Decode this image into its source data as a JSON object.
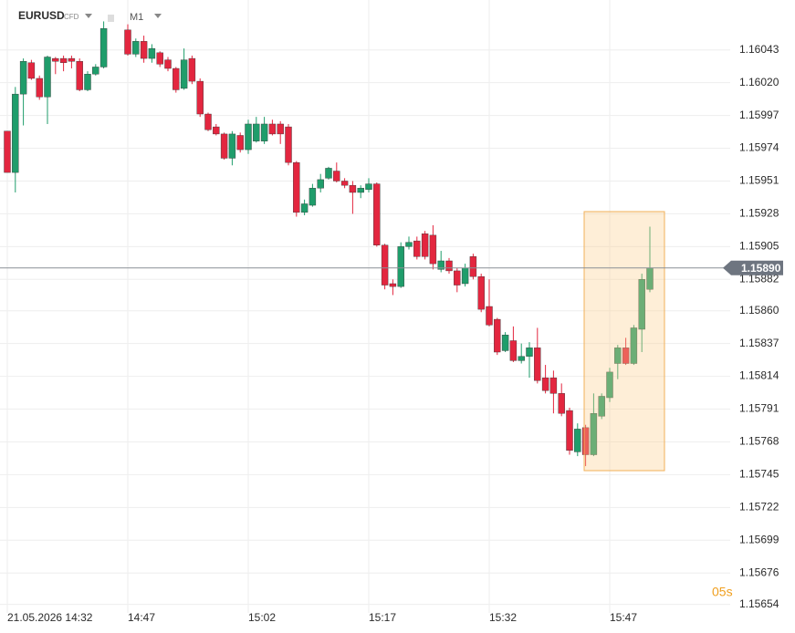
{
  "chart_data": {
    "type": "candlestick",
    "symbol": "EURUSD",
    "market": "CFD",
    "timeframe": "M1",
    "countdown": "05s",
    "up_color": "#1f9d6b",
    "down_color": "#e3263f",
    "grid": true,
    "categories": [
      "21.05.2026 14:32",
      null,
      null,
      null,
      null,
      null,
      null,
      null,
      null,
      null,
      null,
      null,
      null,
      null,
      null,
      "14:47",
      null,
      null,
      null,
      null,
      null,
      null,
      null,
      null,
      null,
      null,
      null,
      null,
      null,
      null,
      "15:02",
      null,
      null,
      null,
      null,
      null,
      null,
      null,
      null,
      null,
      null,
      null,
      null,
      null,
      null,
      "15:17",
      null,
      null,
      null,
      null,
      null,
      null,
      null,
      null,
      null,
      null,
      null,
      null,
      null,
      null,
      "15:32",
      null,
      null,
      null,
      null,
      null,
      null,
      null,
      null,
      null,
      null,
      null,
      null,
      null,
      null,
      "15:47",
      null,
      null,
      null,
      null,
      null
    ],
    "open": [
      1.15986,
      1.15957,
      1.16012,
      1.16034,
      1.16023,
      1.1601,
      1.16037,
      1.16037,
      1.16037,
      1.16035,
      1.16015,
      1.16026,
      1.16031,
      null,
      null,
      1.16057,
      1.1604,
      1.16049,
      1.16037,
      1.16041,
      1.16036,
      1.1603,
      1.16016,
      1.16037,
      1.16021,
      1.15998,
      1.15989,
      1.15984,
      1.15967,
      1.15983,
      1.15973,
      1.15979,
      1.15979,
      1.15991,
      1.15991,
      1.15989,
      1.15964,
      1.15929,
      1.15934,
      1.15946,
      1.15953,
      1.15958,
      1.15951,
      1.15948,
      1.15943,
      1.15945,
      1.15949,
      1.15906,
      1.15879,
      1.15877,
      1.15905,
      1.15909,
      1.15914,
      1.15913,
      1.15889,
      1.15895,
      1.15888,
      1.15879,
      1.15898,
      1.15884,
      1.15863,
      1.15854,
      1.15832,
      1.15839,
      1.15825,
      1.15828,
      1.15834,
      1.15813,
      1.15813,
      1.15802,
      1.1579,
      1.15761,
      1.15778,
      1.15759,
      1.15786,
      1.15799,
      1.15823,
      1.15834,
      1.15823,
      1.15847,
      1.15875
    ],
    "high": [
      1.15986,
      1.16017,
      1.16037,
      1.16036,
      1.16025,
      1.16039,
      1.16038,
      1.16039,
      1.16039,
      1.16037,
      1.16028,
      1.16033,
      1.16063,
      null,
      null,
      1.16061,
      1.16051,
      1.16053,
      1.16047,
      1.16042,
      1.16038,
      1.16031,
      1.16044,
      1.16039,
      1.16023,
      1.15999,
      1.15991,
      1.15985,
      1.15986,
      1.15985,
      1.15994,
      1.15996,
      1.15996,
      1.15994,
      1.15993,
      1.15991,
      1.15965,
      1.15938,
      1.15949,
      1.15956,
      1.15961,
      1.15964,
      1.15953,
      1.15951,
      1.15948,
      1.15953,
      1.1595,
      1.15907,
      1.15882,
      1.15908,
      1.15912,
      1.15912,
      1.15916,
      1.1592,
      1.15902,
      1.15897,
      1.1589,
      1.15893,
      1.159,
      1.15886,
      1.15882,
      1.15855,
      1.15845,
      1.15849,
      1.15837,
      1.15838,
      1.15848,
      1.15822,
      1.15818,
      1.15809,
      1.15792,
      1.15781,
      1.1578,
      1.15802,
      1.15802,
      1.1582,
      1.15836,
      1.15841,
      1.1585,
      1.15886,
      1.15919
    ],
    "low": [
      1.15957,
      1.15943,
      1.1599,
      1.16022,
      1.16008,
      1.15991,
      1.16026,
      1.16028,
      1.1603,
      1.16014,
      1.16014,
      1.16025,
      1.1603,
      null,
      null,
      1.16039,
      1.16038,
      1.16034,
      1.16034,
      1.16031,
      1.16028,
      1.16013,
      1.16015,
      1.16019,
      1.15996,
      1.15986,
      1.15983,
      1.15966,
      1.15962,
      1.15971,
      1.1597,
      1.15978,
      1.15977,
      1.15983,
      1.15977,
      1.15962,
      1.15926,
      1.15927,
      1.15933,
      1.15943,
      1.15952,
      1.1595,
      1.15946,
      1.15928,
      1.15939,
      1.15943,
      1.15905,
      1.15875,
      1.15871,
      1.15876,
      1.15903,
      1.15896,
      1.15896,
      1.15889,
      1.15887,
      1.15886,
      1.15873,
      1.15877,
      1.15882,
      1.15859,
      1.15849,
      1.15829,
      1.15831,
      1.15824,
      1.15823,
      1.15813,
      1.15809,
      1.15802,
      1.15788,
      1.15786,
      1.15759,
      1.15758,
      1.15751,
      1.15758,
      1.15784,
      1.15796,
      1.15812,
      1.15822,
      1.15822,
      1.15831,
      1.15873
    ],
    "close": [
      1.15957,
      1.16012,
      1.16035,
      1.16023,
      1.1601,
      1.16038,
      1.16035,
      1.16034,
      1.16035,
      1.16015,
      1.16026,
      1.16031,
      1.16058,
      null,
      null,
      1.1604,
      1.16049,
      1.16037,
      1.16044,
      1.16033,
      1.1603,
      1.16015,
      1.16036,
      1.16021,
      1.15998,
      1.15987,
      1.15984,
      1.15967,
      1.15984,
      1.15973,
      1.15991,
      1.15991,
      1.15991,
      1.15984,
      1.15984,
      1.15964,
      1.15929,
      1.15935,
      1.15946,
      1.15952,
      1.1596,
      1.15951,
      1.15948,
      1.15943,
      1.15946,
      1.15949,
      1.15906,
      1.15878,
      1.15877,
      1.15905,
      1.15908,
      1.15898,
      1.15898,
      1.15893,
      1.15895,
      1.15888,
      1.15878,
      1.1589,
      1.15884,
      1.15861,
      1.1585,
      1.15831,
      1.15843,
      1.15825,
      1.15828,
      1.15834,
      1.15811,
      1.15804,
      1.15802,
      1.15788,
      1.15762,
      1.15777,
      1.15759,
      1.15788,
      1.158,
      1.15817,
      1.15834,
      1.15823,
      1.15848,
      1.15882,
      1.1589
    ],
    "last_price": {
      "value": 1.1589,
      "label": "1.15890"
    },
    "ylim": [
      1.15648,
      1.16078
    ],
    "yticks": [
      1.16043,
      {
        "value": 1.1602,
        "label": "1.16020"
      },
      1.15997,
      1.15974,
      1.15951,
      1.15928,
      1.15905,
      1.15882,
      {
        "value": 1.1586,
        "label": "1.15860"
      },
      1.15837,
      1.15814,
      1.15791,
      1.15768,
      1.15745,
      1.15722,
      1.15699,
      1.15676,
      1.15654
    ]
  }
}
